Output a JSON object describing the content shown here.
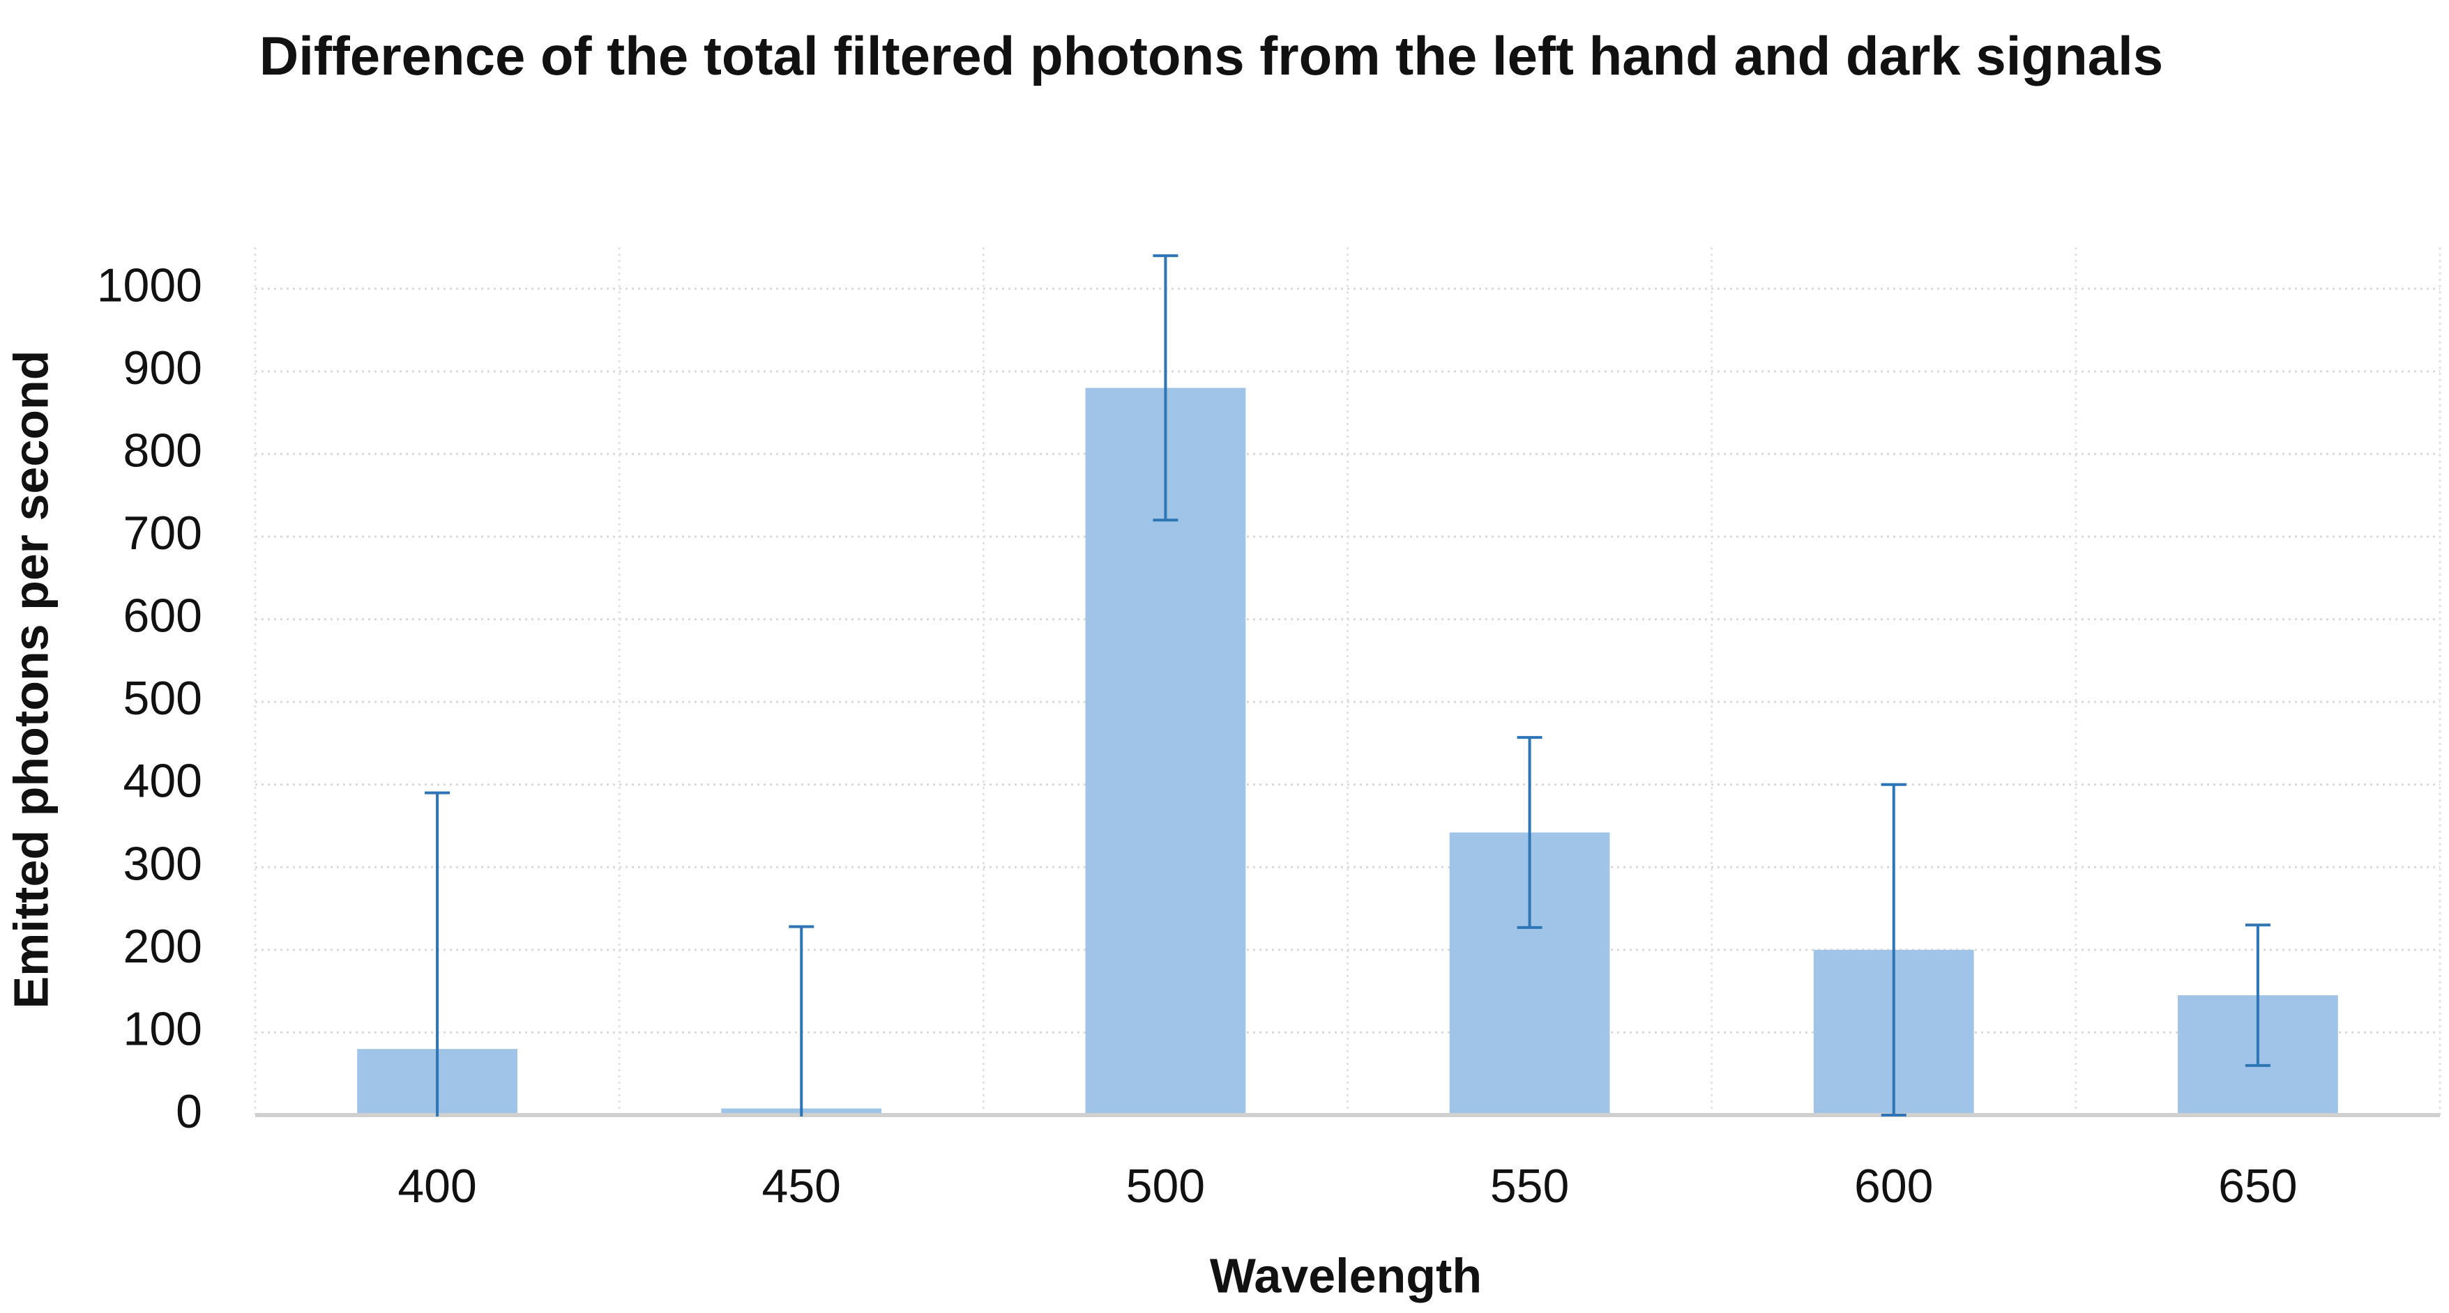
{
  "chart_data": {
    "type": "bar",
    "title": "Difference of the total filtered photons from the left hand and dark signals",
    "x_label": "Wavelength",
    "y_label": "Emitted photons per second",
    "categories": [
      "400",
      "450",
      "500",
      "550",
      "600",
      "650"
    ],
    "values": [
      80,
      8,
      880,
      342,
      200,
      145
    ],
    "errors": [
      310,
      220,
      160,
      115,
      200,
      85
    ],
    "color": "#9fc4e7",
    "error_color": "#2e75b6",
    "ylim": [
      0,
      1050
    ],
    "yticks": [
      0,
      100,
      200,
      300,
      400,
      500,
      600,
      700,
      800,
      900,
      1000
    ],
    "grid": true
  }
}
